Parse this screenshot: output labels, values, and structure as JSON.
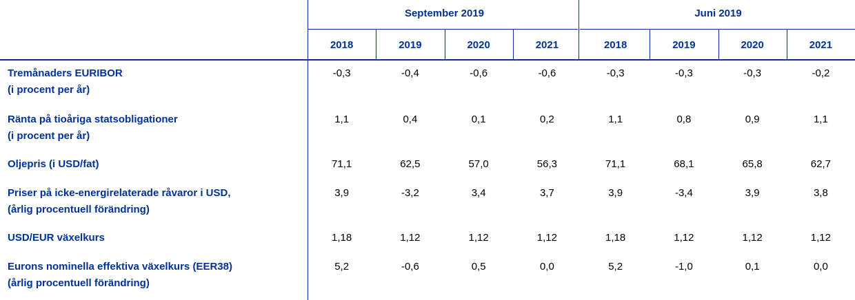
{
  "table": {
    "groups": [
      "September 2019",
      "Juni 2019"
    ],
    "years": [
      "2018",
      "2019",
      "2020",
      "2021",
      "2018",
      "2019",
      "2020",
      "2021"
    ],
    "rows": [
      {
        "label": [
          "Tremånaders EURIBOR",
          "(i procent per år)"
        ],
        "values": [
          "-0,3",
          "-0,4",
          "-0,6",
          "-0,6",
          "-0,3",
          "-0,3",
          "-0,3",
          "-0,2"
        ]
      },
      {
        "label": [
          "Ränta på tioåriga statsobligationer",
          "(i procent per år)"
        ],
        "values": [
          "1,1",
          "0,4",
          "0,1",
          "0,2",
          "1,1",
          "0,8",
          "0,9",
          "1,1"
        ]
      },
      {
        "label": [
          "Oljepris (i USD/fat)"
        ],
        "values": [
          "71,1",
          "62,5",
          "57,0",
          "56,3",
          "71,1",
          "68,1",
          "65,8",
          "62,7"
        ]
      },
      {
        "label": [
          "Priser på icke-energirelaterade råvaror i USD,",
          "(årlig procentuell förändring)"
        ],
        "values": [
          "3,9",
          "-3,2",
          "3,4",
          "3,7",
          "3,9",
          "-3,4",
          "3,9",
          "3,8"
        ]
      },
      {
        "label": [
          "USD/EUR växelkurs"
        ],
        "values": [
          "1,18",
          "1,12",
          "1,12",
          "1,12",
          "1,18",
          "1,12",
          "1,12",
          "1,12"
        ]
      },
      {
        "label": [
          "Eurons nominella effektiva växelkurs (EER38)",
          "(årlig procentuell förändring)"
        ],
        "values": [
          "5,2",
          "-0,6",
          "0,5",
          "0,0",
          "5,2",
          "-1,0",
          "0,1",
          "0,0"
        ]
      }
    ]
  }
}
